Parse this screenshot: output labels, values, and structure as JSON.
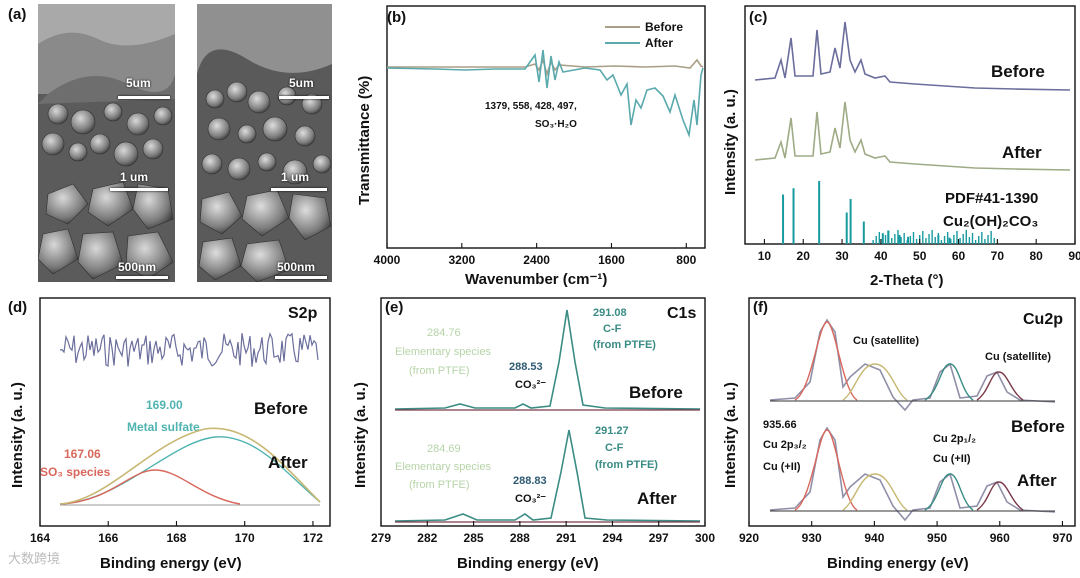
{
  "panels": {
    "a": {
      "label": "(a)",
      "left_scales": [
        "5um",
        "1 um",
        "500nm"
      ],
      "right_scales": [
        "5um",
        "1 um",
        "500nm"
      ]
    },
    "b": {
      "label": "(b)",
      "legend": [
        "Before",
        "After"
      ],
      "annotation_line1": "1379, 558, 428, 497,",
      "annotation_line2": "SO₃·H₂O",
      "xlabel": "Wavenumber (cm⁻¹)",
      "ylabel": "Transmittance (%)"
    },
    "c": {
      "label": "(c)",
      "before": "Before",
      "after": "After",
      "pdf": "PDF#41-1390",
      "compound": "Cu₂(OH)₂CO₃",
      "xlabel": "2-Theta (°)",
      "ylabel": "Intensity (a. u.)"
    },
    "d": {
      "label": "(d)",
      "title": "S2p",
      "before": "Before",
      "after": "After",
      "peak1_value": "169.00",
      "peak1_name": "Metal sulfate",
      "peak2_value": "167.06",
      "peak2_name": "SO₃ species",
      "xlabel": "Binding energy (eV)",
      "ylabel": "Intensity (a. u.)"
    },
    "e": {
      "label": "(e)",
      "title": "C1s",
      "before": "Before",
      "after": "After",
      "b_peak1_value": "284.76",
      "b_peak1_name": "Elementary species",
      "b_peak1_src": "(from PTFE)",
      "b_peak2_value": "288.53",
      "b_peak2_name": "CO₃²⁻",
      "b_peak3_value": "291.08",
      "b_peak3_name": "C-F",
      "b_peak3_src": "(from PTFE)",
      "a_peak1_value": "284.69",
      "a_peak1_name": "Elementary species",
      "a_peak1_src": "(from PTFE)",
      "a_peak2_value": "288.83",
      "a_peak2_name": "CO₃²⁻",
      "a_peak3_value": "291.27",
      "a_peak3_name": "C-F",
      "a_peak3_src": "(from PTFE)",
      "xlabel": "Binding energy (eV)",
      "ylabel": "Intensity (a. u.)"
    },
    "f": {
      "label": "(f)",
      "title": "Cu2p",
      "sat1": "Cu (satellite)",
      "sat2": "Cu (satellite)",
      "before": "Before",
      "after": "After",
      "p32_value": "935.66",
      "p32_name": "Cu 2p₃/₂",
      "p32_state": "Cu (+II)",
      "p12_name": "Cu 2p₁/₂",
      "p12_state": "Cu (+II)",
      "xlabel": "Binding energy (eV)",
      "ylabel": "Intensity (a. u.)"
    }
  },
  "watermark": "大数跨境",
  "chart_data": [
    {
      "type": "line",
      "id": "b",
      "title": "",
      "xlabel": "Wavenumber (cm⁻¹)",
      "ylabel": "Transmittance (%)",
      "xlim": [
        4000,
        600
      ],
      "x_ticks": [
        4000,
        3200,
        2400,
        1600,
        800
      ],
      "series": [
        {
          "name": "Before",
          "color": "#a89f86"
        },
        {
          "name": "After",
          "color": "#5aa9ad"
        }
      ]
    },
    {
      "type": "line",
      "id": "c",
      "title": "",
      "xlabel": "2-Theta (°)",
      "ylabel": "Intensity (a. u.)",
      "xlim": [
        5,
        90
      ],
      "x_ticks": [
        10,
        20,
        30,
        40,
        50,
        60,
        70,
        80,
        90
      ],
      "peaks_2theta": [
        14.8,
        17.5,
        24.1,
        31.2,
        32.2,
        35.6,
        40.5,
        41.9,
        44.8,
        47.0,
        54.8,
        57.7
      ],
      "series": [
        {
          "name": "Before",
          "color": "#6b6e9c"
        },
        {
          "name": "After",
          "color": "#9eab86"
        },
        {
          "name": "PDF#41-1390",
          "color": "#179aa0"
        }
      ]
    },
    {
      "type": "line",
      "id": "d",
      "title": "S2p",
      "xlabel": "Binding energy (eV)",
      "ylabel": "Intensity (a. u.)",
      "xlim": [
        164,
        172.5
      ],
      "x_ticks": [
        164,
        166,
        168,
        170,
        172
      ],
      "series": [
        {
          "name": "Before",
          "color": "#6b6e9c"
        },
        {
          "name": "After",
          "color": "#c8b873"
        },
        {
          "name": "Metal sulfate",
          "center": 169.0,
          "color": "#4fb3b0"
        },
        {
          "name": "SO₃ species",
          "center": 167.06,
          "color": "#d9675c"
        }
      ]
    },
    {
      "type": "line",
      "id": "e",
      "title": "C1s",
      "xlabel": "Binding energy (eV)",
      "ylabel": "Intensity (a. u.)",
      "xlim": [
        279,
        300
      ],
      "x_ticks": [
        279,
        282,
        285,
        288,
        291,
        294,
        297,
        300
      ],
      "series": [
        {
          "name": "Before",
          "peaks": [
            284.76,
            288.53,
            291.08
          ],
          "color": "#3a8c84"
        },
        {
          "name": "After",
          "peaks": [
            284.69,
            288.83,
            291.27
          ],
          "color": "#3a8c84"
        }
      ]
    },
    {
      "type": "line",
      "id": "f",
      "title": "Cu2p",
      "xlabel": "Binding energy (eV)",
      "ylabel": "Intensity (a. u.)",
      "xlim": [
        920,
        972
      ],
      "x_ticks": [
        920,
        930,
        940,
        950,
        960,
        970
      ],
      "peaks": [
        935.66,
        943.5,
        955.5,
        963.0
      ],
      "series": [
        {
          "name": "Before",
          "color": "#8f8fa8"
        },
        {
          "name": "After",
          "color": "#8f8fa8"
        }
      ]
    }
  ]
}
